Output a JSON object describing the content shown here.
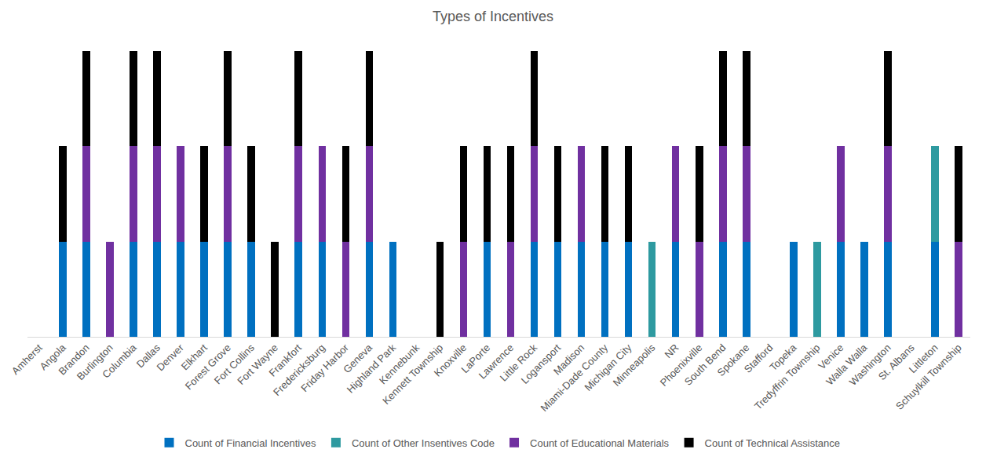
{
  "chart_data": {
    "type": "bar",
    "title": "Types of Incentives",
    "stacked": true,
    "legend": "bottom",
    "grid": false,
    "tick_labels": "x",
    "ylim": [
      0,
      3
    ],
    "categories": [
      "Amherst",
      "Angola",
      "Brandon",
      "Burlington",
      "Columbia",
      "Dallas",
      "Denver",
      "Elkhart",
      "Forest Grove",
      "Fort Collins",
      "Fort Wayne",
      "Frankfort",
      "Fredericksburg",
      "Friday Harbor",
      "Geneva",
      "Highland Park",
      "Kennebunk",
      "Kennett Township",
      "Knoxville",
      "LaPorte",
      "Lawrence",
      "Little Rock",
      "Logansport",
      "Madison",
      "Miami-Dade County",
      "Michigan City",
      "Minneapolis",
      "NR",
      "Phoenixville",
      "South Bend",
      "Spokane",
      "Stafford",
      "Topeka",
      "Tredyffrin Township",
      "Venice",
      "Walla Walla",
      "Washington",
      "St. Albans",
      "Littleton",
      "Schuylkill Township"
    ],
    "series": [
      {
        "name": "Count of Financial Incentives",
        "color": "#0070C0",
        "values": [
          0,
          1,
          1,
          0,
          1,
          1,
          1,
          1,
          1,
          1,
          0,
          1,
          1,
          0,
          1,
          1,
          0,
          0,
          0,
          1,
          0,
          1,
          1,
          1,
          1,
          1,
          0,
          1,
          0,
          1,
          1,
          0,
          1,
          0,
          1,
          1,
          1,
          0,
          1,
          0
        ]
      },
      {
        "name": "Count of Other Insentives Code",
        "color": "#2E9AA0",
        "values": [
          0,
          0,
          0,
          0,
          0,
          0,
          0,
          0,
          0,
          0,
          0,
          0,
          0,
          0,
          0,
          0,
          0,
          0,
          0,
          0,
          0,
          0,
          0,
          0,
          0,
          0,
          1,
          0,
          0,
          0,
          0,
          0,
          0,
          1,
          0,
          0,
          0,
          0,
          1,
          0
        ]
      },
      {
        "name": "Count of Educational Materials",
        "color": "#7030A0",
        "values": [
          0,
          0,
          1,
          1,
          1,
          1,
          1,
          0,
          1,
          0,
          0,
          1,
          1,
          1,
          1,
          0,
          0,
          0,
          1,
          0,
          1,
          1,
          0,
          1,
          0,
          0,
          0,
          1,
          1,
          1,
          1,
          0,
          0,
          0,
          1,
          0,
          1,
          0,
          0,
          1
        ]
      },
      {
        "name": "Count of Technical Assistance",
        "color": "#000000",
        "values": [
          0,
          1,
          1,
          0,
          1,
          1,
          0,
          1,
          1,
          1,
          1,
          1,
          0,
          1,
          1,
          0,
          0,
          1,
          1,
          1,
          1,
          1,
          1,
          0,
          1,
          1,
          0,
          0,
          1,
          1,
          1,
          0,
          0,
          0,
          0,
          0,
          1,
          0,
          0,
          1
        ]
      }
    ]
  }
}
